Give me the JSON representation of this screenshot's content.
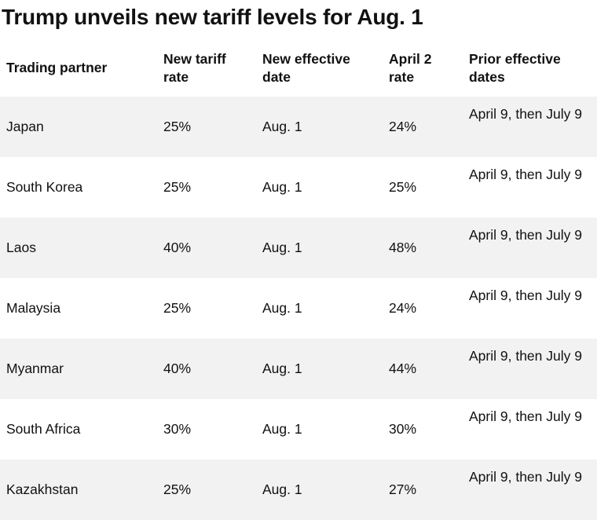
{
  "title": "Trump unveils new tariff levels for Aug. 1",
  "columns": [
    "Trading partner",
    "New tariff rate",
    "New effective date",
    "April 2 rate",
    "Prior effective dates"
  ],
  "rows": [
    {
      "partner": "Japan",
      "new_rate": "25%",
      "effective": "Aug. 1",
      "april2": "24%",
      "prior": "April 9, then July 9"
    },
    {
      "partner": "South Korea",
      "new_rate": "25%",
      "effective": "Aug. 1",
      "april2": "25%",
      "prior": "April 9, then July 9"
    },
    {
      "partner": "Laos",
      "new_rate": "40%",
      "effective": "Aug. 1",
      "april2": "48%",
      "prior": "April 9, then July 9"
    },
    {
      "partner": "Malaysia",
      "new_rate": "25%",
      "effective": "Aug. 1",
      "april2": "24%",
      "prior": "April 9, then July 9"
    },
    {
      "partner": "Myanmar",
      "new_rate": "40%",
      "effective": "Aug. 1",
      "april2": "44%",
      "prior": "April 9, then July 9"
    },
    {
      "partner": "South Africa",
      "new_rate": "30%",
      "effective": "Aug. 1",
      "april2": "30%",
      "prior": "April 9, then July 9"
    },
    {
      "partner": "Kazakhstan",
      "new_rate": "25%",
      "effective": "Aug. 1",
      "april2": "27%",
      "prior": "April 9, then July 9"
    }
  ],
  "colors": {
    "text": "#111111",
    "stripe": "#f2f2f2",
    "background": "#ffffff"
  }
}
